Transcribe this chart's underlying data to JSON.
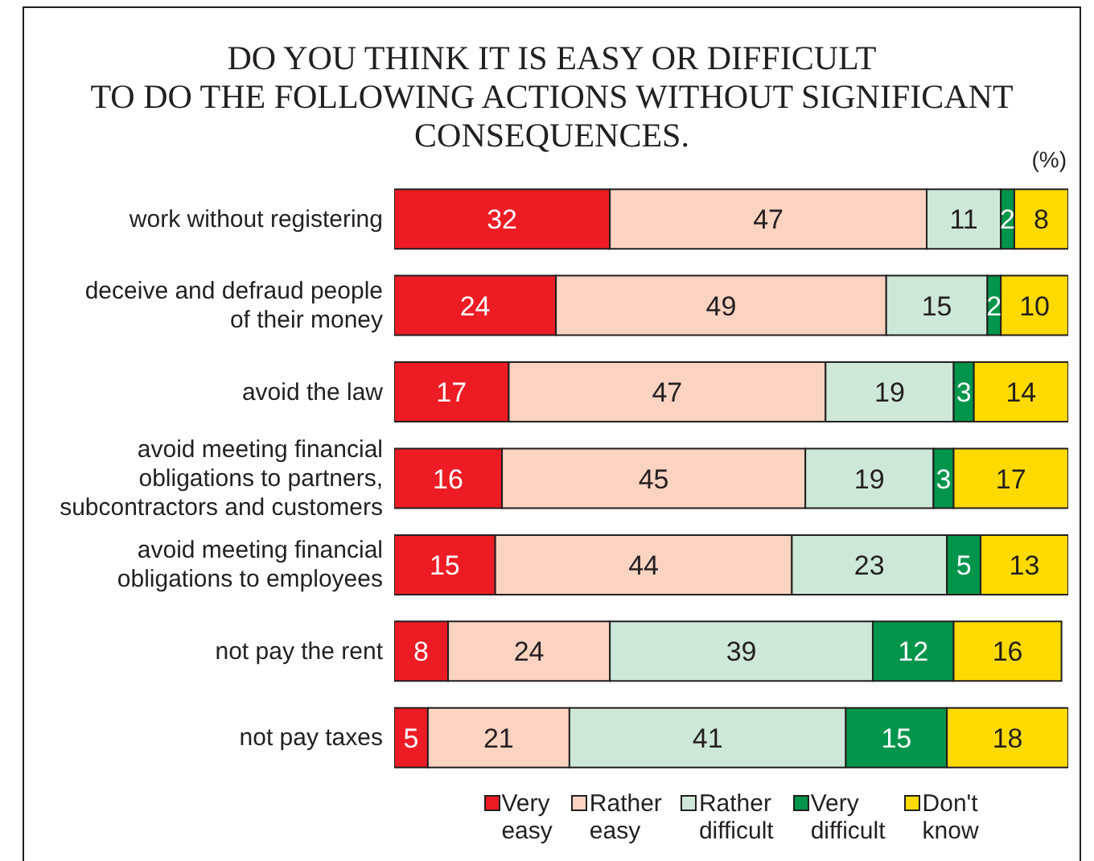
{
  "chart_data": {
    "type": "bar",
    "orientation": "horizontal",
    "stacked": true,
    "data_labels": true,
    "title": "DO YOU THINK IT IS EASY OR DIFFICULT\nTO DO THE FOLLOWING ACTIONS WITHOUT SIGNIFICANT\nCONSEQUENCES.",
    "annotations": [
      "(%)"
    ],
    "categories": [
      "work without registering",
      "deceive and defraud people of their money",
      "avoid the law",
      "avoid meeting financial obligations to partners, subcontractors and customers",
      "avoid meeting financial obligations to employees",
      "not pay the rent",
      "not pay taxes"
    ],
    "series": [
      {
        "name": "Very easy",
        "color": "#ed1c24",
        "values": [
          32,
          24,
          17,
          16,
          15,
          8,
          5
        ]
      },
      {
        "name": "Rather easy",
        "color": "#fbd3c1",
        "values": [
          47,
          49,
          47,
          45,
          44,
          24,
          21
        ]
      },
      {
        "name": "Rather difficult",
        "color": "#cde8d8",
        "values": [
          11,
          15,
          19,
          19,
          23,
          39,
          41
        ]
      },
      {
        "name": "Very difficult",
        "color": "#00954a",
        "values": [
          2,
          2,
          3,
          3,
          5,
          12,
          15
        ]
      },
      {
        "name": "Don't know",
        "color": "#ffda00",
        "values": [
          8,
          10,
          14,
          17,
          13,
          16,
          18
        ]
      }
    ],
    "xlim": [
      0,
      100
    ],
    "legend": "bottom",
    "tick_labels": "y"
  }
}
